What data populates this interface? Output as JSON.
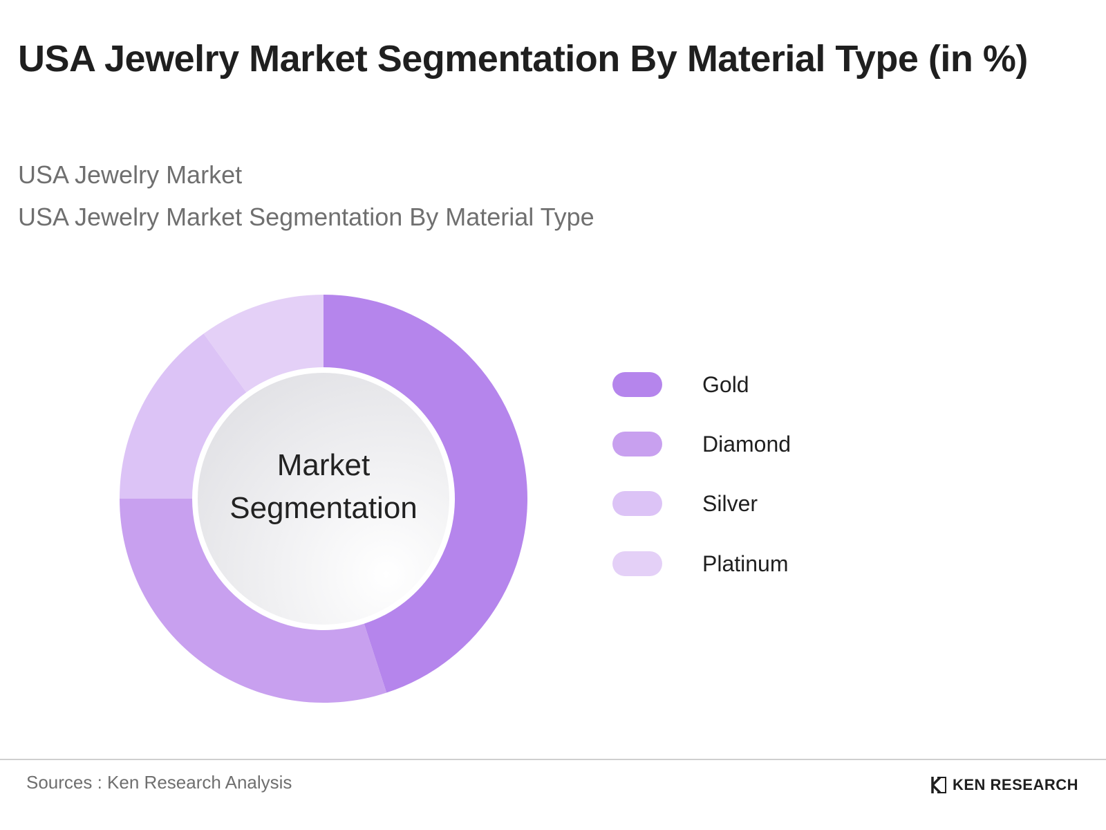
{
  "header": {
    "title": "USA Jewelry Market Segmentation By Material Type (in %)",
    "subtitle_1": "USA Jewelry Market",
    "subtitle_2": "USA Jewelry Market Segmentation By Material Type"
  },
  "chart_data": {
    "type": "pie",
    "donut": true,
    "center_label_line1": "Market",
    "center_label_line2": "Segmentation",
    "legend_position": "right",
    "categories": [
      "Gold",
      "Diamond",
      "Silver",
      "Platinum"
    ],
    "values": [
      45,
      30,
      15,
      10
    ],
    "colors": [
      "#b585ec",
      "#c8a0ef",
      "#dcc3f6",
      "#e4d0f7"
    ]
  },
  "footer": {
    "sources": "Sources : Ken Research Analysis",
    "brand": "KEN RESEARCH",
    "brand_icon": "ken-research-logo-icon"
  }
}
